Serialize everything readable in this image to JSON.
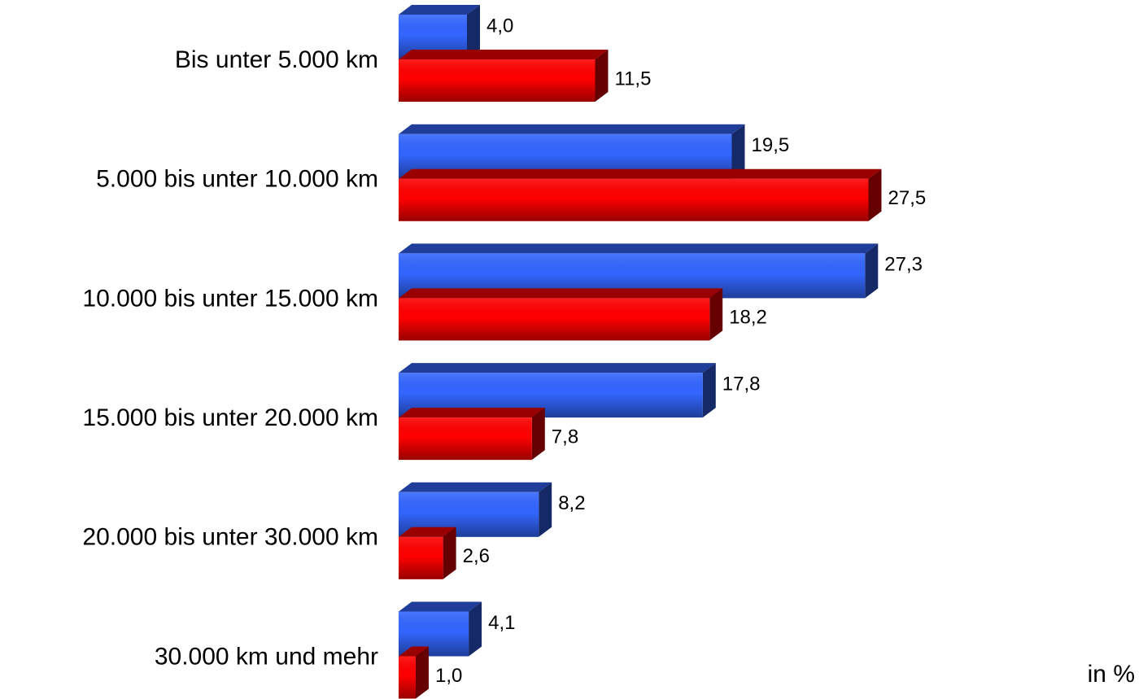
{
  "chart_data": {
    "type": "bar",
    "orientation": "horizontal",
    "categories": [
      "Bis unter 5.000 km",
      "5.000 bis unter 10.000 km",
      "10.000 bis unter 15.000 km",
      "15.000 bis unter 20.000 km",
      "20.000 bis unter 30.000 km",
      "30.000 km und mehr"
    ],
    "series": [
      {
        "color": "#3366ff",
        "values": [
          4.0,
          19.5,
          27.3,
          17.8,
          8.2,
          4.1
        ],
        "value_labels": [
          "4,0",
          "19,5",
          "27,3",
          "17,8",
          "8,2",
          "4,1"
        ]
      },
      {
        "color": "#ff0000",
        "values": [
          11.5,
          27.5,
          18.2,
          7.8,
          2.6,
          1.0
        ],
        "value_labels": [
          "11,5",
          "27,5",
          "18,2",
          "7,8",
          "2,6",
          "1,0"
        ]
      }
    ],
    "annotation": "in %"
  }
}
